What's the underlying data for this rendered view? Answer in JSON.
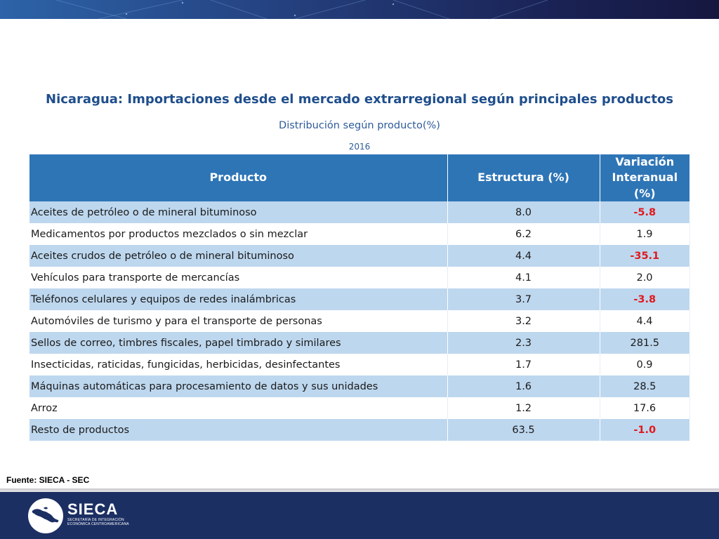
{
  "header": {
    "title": "Nicaragua: Importaciones desde el mercado extrarregional según principales productos",
    "subtitle": "Distribución según producto(%)",
    "year": "2016"
  },
  "table": {
    "columns": [
      "Producto",
      "Estructura (%)",
      "Variación Interanual (%)"
    ],
    "rows": [
      {
        "producto": "Aceites de petróleo o de mineral bituminoso",
        "estructura": "8.0",
        "variacion": "-5.8",
        "negative": true
      },
      {
        "producto": "Medicamentos por productos mezclados o sin mezclar",
        "estructura": "6.2",
        "variacion": "1.9",
        "negative": false
      },
      {
        "producto": "Aceites crudos de petróleo o de mineral bituminoso",
        "estructura": "4.4",
        "variacion": "-35.1",
        "negative": true
      },
      {
        "producto": "Vehículos para transporte de mercancías",
        "estructura": "4.1",
        "variacion": "2.0",
        "negative": false
      },
      {
        "producto": "Teléfonos celulares y equipos de redes inalámbricas",
        "estructura": "3.7",
        "variacion": "-3.8",
        "negative": true
      },
      {
        "producto": "Automóviles de turismo y para el transporte de personas",
        "estructura": "3.2",
        "variacion": "4.4",
        "negative": false
      },
      {
        "producto": "Sellos de correo, timbres fiscales, papel timbrado y similares",
        "estructura": "2.3",
        "variacion": "281.5",
        "negative": false
      },
      {
        "producto": "Insecticidas, raticidas, fungicidas, herbicidas, desinfectantes",
        "estructura": "1.7",
        "variacion": "0.9",
        "negative": false
      },
      {
        "producto": "Máquinas automáticas para procesamiento de datos y sus unidades",
        "estructura": "1.6",
        "variacion": "28.5",
        "negative": false
      },
      {
        "producto": "Arroz",
        "estructura": "1.2",
        "variacion": "17.6",
        "negative": false
      },
      {
        "producto": "Resto de productos",
        "estructura": "63.5",
        "variacion": "-1.0",
        "negative": true
      }
    ]
  },
  "source": "Fuente: SIECA - SEC",
  "footer": {
    "logo_icon": "central-america-map-icon",
    "brand": "SIECA",
    "tagline": "SECRETARÍA DE INTEGRACIÓN ECONÓMICA CENTROAMERICANA"
  },
  "colors": {
    "header_bg": "#2e75b6",
    "row_alt_bg": "#bdd7ee",
    "negative_text": "#e0191e",
    "title_text": "#1f4e8c",
    "footer_bg": "#1c2f63"
  }
}
